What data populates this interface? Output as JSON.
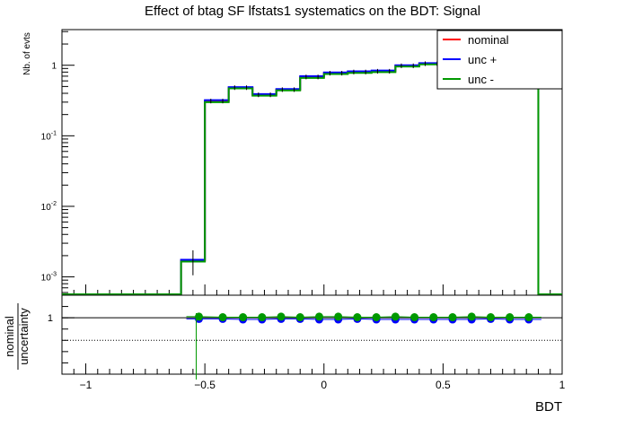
{
  "title": "Effect of btag SF lfstats1 systematics on the BDT: Signal",
  "colors": {
    "nominal": "#ff0000",
    "unc_plus": "#0000ff",
    "unc_minus": "#009900",
    "axis": "#000000"
  },
  "legend": {
    "placement": "top-right",
    "entries": [
      {
        "label": "nominal",
        "color": "#ff0000"
      },
      {
        "label": "unc +",
        "color": "#0000ff"
      },
      {
        "label": "unc -",
        "color": "#009900"
      }
    ]
  },
  "chart_data": [
    {
      "type": "line",
      "subtype": "step-histogram",
      "panel": "main",
      "ylabel": "Nb. of evts",
      "xlabel": "",
      "yscale": "log",
      "xlim": [
        -1.1,
        1.0
      ],
      "ylim": [
        0.00055,
        3.2
      ],
      "y_ticks": [
        {
          "value": 0.001,
          "base": "10",
          "exp": "-3"
        },
        {
          "value": 0.01,
          "base": "10",
          "exp": "-2"
        },
        {
          "value": 0.1,
          "base": "10",
          "exp": "-1"
        },
        {
          "value": 1,
          "base": "1",
          "exp": ""
        }
      ],
      "bin_edges": [
        -0.6,
        -0.5,
        -0.45,
        -0.4,
        -0.35,
        -0.3,
        -0.25,
        -0.2,
        -0.15,
        -0.1,
        -0.05,
        0.0,
        0.05,
        0.1,
        0.15,
        0.2,
        0.25,
        0.3,
        0.35,
        0.4,
        0.45,
        0.5,
        0.55,
        0.6,
        0.65,
        0.7,
        0.75,
        0.8,
        0.85,
        0.9
      ],
      "series": [
        {
          "name": "nominal",
          "values": [
            0.0017,
            0.31,
            0.31,
            0.48,
            0.48,
            0.38,
            0.38,
            0.45,
            0.45,
            0.68,
            0.68,
            0.77,
            0.77,
            0.8,
            0.8,
            0.82,
            0.82,
            0.98,
            0.98,
            1.05,
            1.05,
            1.15,
            1.15,
            1.2,
            1.2,
            1.25,
            1.25,
            1.3,
            1.3
          ]
        },
        {
          "name": "unc +",
          "values": [
            0.00175,
            0.32,
            0.32,
            0.49,
            0.49,
            0.39,
            0.39,
            0.46,
            0.46,
            0.7,
            0.7,
            0.79,
            0.79,
            0.82,
            0.82,
            0.84,
            0.84,
            1.0,
            1.0,
            1.07,
            1.07,
            1.17,
            1.17,
            1.22,
            1.22,
            1.27,
            1.27,
            1.32,
            1.32
          ]
        },
        {
          "name": "unc -",
          "values": [
            0.00165,
            0.3,
            0.3,
            0.47,
            0.47,
            0.37,
            0.37,
            0.44,
            0.44,
            0.66,
            0.66,
            0.75,
            0.75,
            0.78,
            0.78,
            0.8,
            0.8,
            0.96,
            0.96,
            1.03,
            1.03,
            1.13,
            1.13,
            1.18,
            1.18,
            1.23,
            1.23,
            1.28,
            1.28
          ]
        }
      ]
    },
    {
      "type": "scatter",
      "panel": "ratio",
      "ylabel_numerator": "nominal",
      "ylabel_denominator": "uncertainty",
      "xlabel": "BDT",
      "xlim": [
        -1.1,
        1.0
      ],
      "ylim": [
        0.9,
        1.04
      ],
      "reference_line": 1,
      "dotted_line": 0.96,
      "y_ticks": [
        {
          "value": 1,
          "label": "1"
        }
      ],
      "x_ticks": [
        {
          "value": -1,
          "label": "−1"
        },
        {
          "value": -0.5,
          "label": "−0.5"
        },
        {
          "value": 0,
          "label": "0"
        },
        {
          "value": 0.5,
          "label": "0.5"
        },
        {
          "value": 1,
          "label": "1"
        }
      ],
      "x": [
        -0.525,
        -0.425,
        -0.34,
        -0.26,
        -0.18,
        -0.1,
        -0.02,
        0.06,
        0.14,
        0.22,
        0.3,
        0.38,
        0.46,
        0.54,
        0.62,
        0.7,
        0.78,
        0.86
      ],
      "series": [
        {
          "name": "unc +",
          "values": [
            0.998,
            0.998,
            0.997,
            0.997,
            0.998,
            0.998,
            0.997,
            0.997,
            0.998,
            0.997,
            0.997,
            0.997,
            0.997,
            0.997,
            0.997,
            0.998,
            0.997,
            0.997
          ],
          "errors": [
            0.004,
            0.004,
            0.004,
            0.004,
            0.004,
            0.004,
            0.004,
            0.003,
            0.004,
            0.004,
            0.004,
            0.004,
            0.004,
            0.004,
            0.004,
            0.004,
            0.004,
            0.004
          ]
        },
        {
          "name": "unc -",
          "values": [
            1.002,
            1.001,
            1.001,
            1.001,
            1.002,
            1.001,
            1.002,
            1.002,
            1.001,
            1.001,
            1.002,
            1.001,
            1.001,
            1.001,
            1.002,
            1.001,
            1.001,
            1.001
          ],
          "errors": [
            0.004,
            0.004,
            0.004,
            0.004,
            0.004,
            0.004,
            0.004,
            0.004,
            0.004,
            0.004,
            0.004,
            0.004,
            0.004,
            0.004,
            0.004,
            0.004,
            0.004,
            0.004
          ]
        }
      ]
    }
  ]
}
